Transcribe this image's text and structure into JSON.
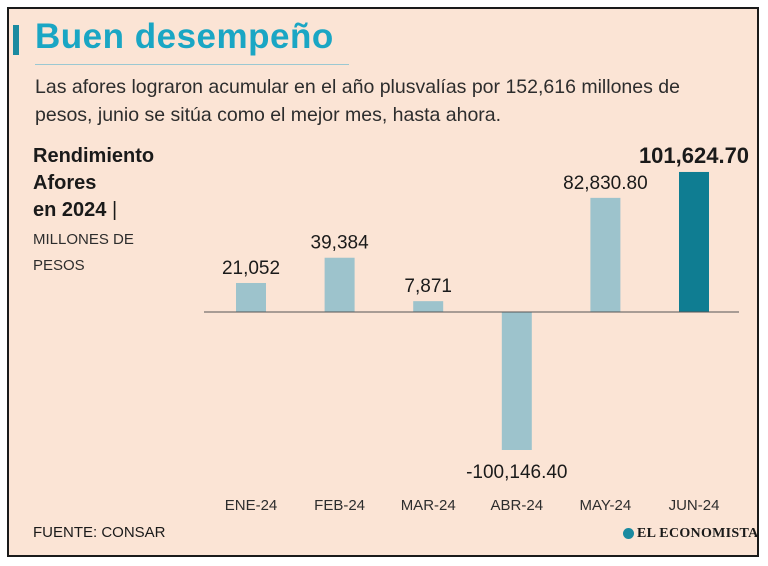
{
  "header": {
    "title": "Buen desempeño",
    "subtitle": "Las afores lograron acumular en el año plusvalías por 152,616 millones de pesos,  junio se sitúa como el mejor mes, hasta ahora."
  },
  "chart_heading": {
    "line1": "Rendimiento",
    "line2": "Afores",
    "line3": "en 2024",
    "separator": "|",
    "units_line1": "MILLONES DE",
    "units_line2": "PESOS"
  },
  "chart_data": {
    "type": "bar",
    "title": "Rendimiento Afores en 2024",
    "ylabel": "MILLONES DE PESOS",
    "xlabel": "",
    "categories": [
      "ENE-24",
      "FEB-24",
      "MAR-24",
      "ABR-24",
      "MAY-24",
      "JUN-24"
    ],
    "values": [
      21052,
      39384,
      7871,
      -100146.4,
      82830.8,
      101624.7
    ],
    "value_labels": [
      "21,052",
      "39,384",
      "7,871",
      "-100,146.40",
      "82,830.80",
      "101,624.70"
    ],
    "highlight_index": 5,
    "ylim": [
      -100146.4,
      101624.7
    ],
    "grid": false
  },
  "colors": {
    "bar": "#9dc3cc",
    "highlight_bar": "#0f7d92",
    "title": "#1aa6c4",
    "background": "#fbe4d5",
    "axis": "#555555"
  },
  "footer": {
    "source": "FUENTE: CONSAR",
    "logo": "EL ECONOMISTA"
  }
}
